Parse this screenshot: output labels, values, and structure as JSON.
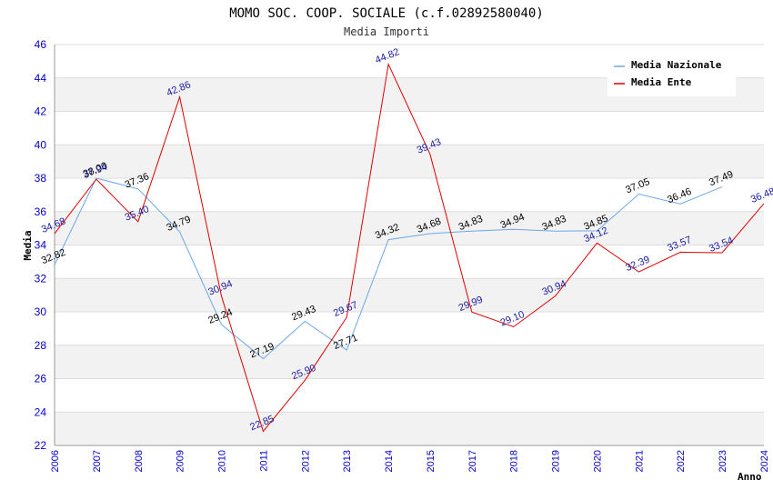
{
  "chart_data": {
    "type": "line",
    "title": "MOMO SOC. COOP. SOCIALE (c.f.02892580040)",
    "subtitle": "Media Importi",
    "ylabel": "Media",
    "xlabel": "Anno",
    "ylim": [
      22,
      46
    ],
    "y_ticks": [
      "22",
      "24",
      "26",
      "28",
      "30",
      "32",
      "34",
      "36",
      "38",
      "40",
      "42",
      "44",
      "46"
    ],
    "categories": [
      "2006",
      "2007",
      "2008",
      "2009",
      "2010",
      "2011",
      "2012",
      "2013",
      "2014",
      "2015",
      "2017",
      "2018",
      "2019",
      "2020",
      "2021",
      "2022",
      "2023",
      "2024"
    ],
    "grid": "horizontal bands",
    "legend_position": "top-right",
    "series": [
      {
        "name": "Media Nazionale",
        "color": "#6aa8e8",
        "label_color": "#000000",
        "values": [
          32.82,
          38.0,
          37.36,
          34.79,
          29.24,
          27.19,
          29.43,
          27.71,
          34.32,
          34.68,
          34.83,
          34.94,
          34.83,
          34.85,
          37.05,
          36.46,
          37.49,
          null
        ],
        "labels": [
          "32.82",
          "38.00",
          "37.36",
          "34.79",
          "29.24",
          "27.19",
          "29.43",
          "27.71",
          "34.32",
          "34.68",
          "34.83",
          "34.94",
          "34.83",
          "34.85",
          "37.05",
          "36.46",
          "37.49",
          null
        ]
      },
      {
        "name": "Media Ente",
        "color": "#e00000",
        "label_color": "#1a1aa0",
        "values": [
          34.68,
          37.94,
          35.4,
          42.86,
          30.94,
          22.85,
          25.9,
          29.67,
          44.82,
          39.43,
          29.99,
          29.1,
          30.94,
          34.12,
          32.39,
          33.57,
          33.54,
          36.48
        ],
        "labels": [
          "34.68",
          "37.94",
          "35.40",
          "42.86",
          "30.94",
          "22.85",
          "25.90",
          "29.67",
          "44.82",
          "39.43",
          "29.99",
          "29.10",
          "30.94",
          "34.12",
          "32.39",
          "33.57",
          "33.54",
          "36.48"
        ]
      }
    ]
  }
}
